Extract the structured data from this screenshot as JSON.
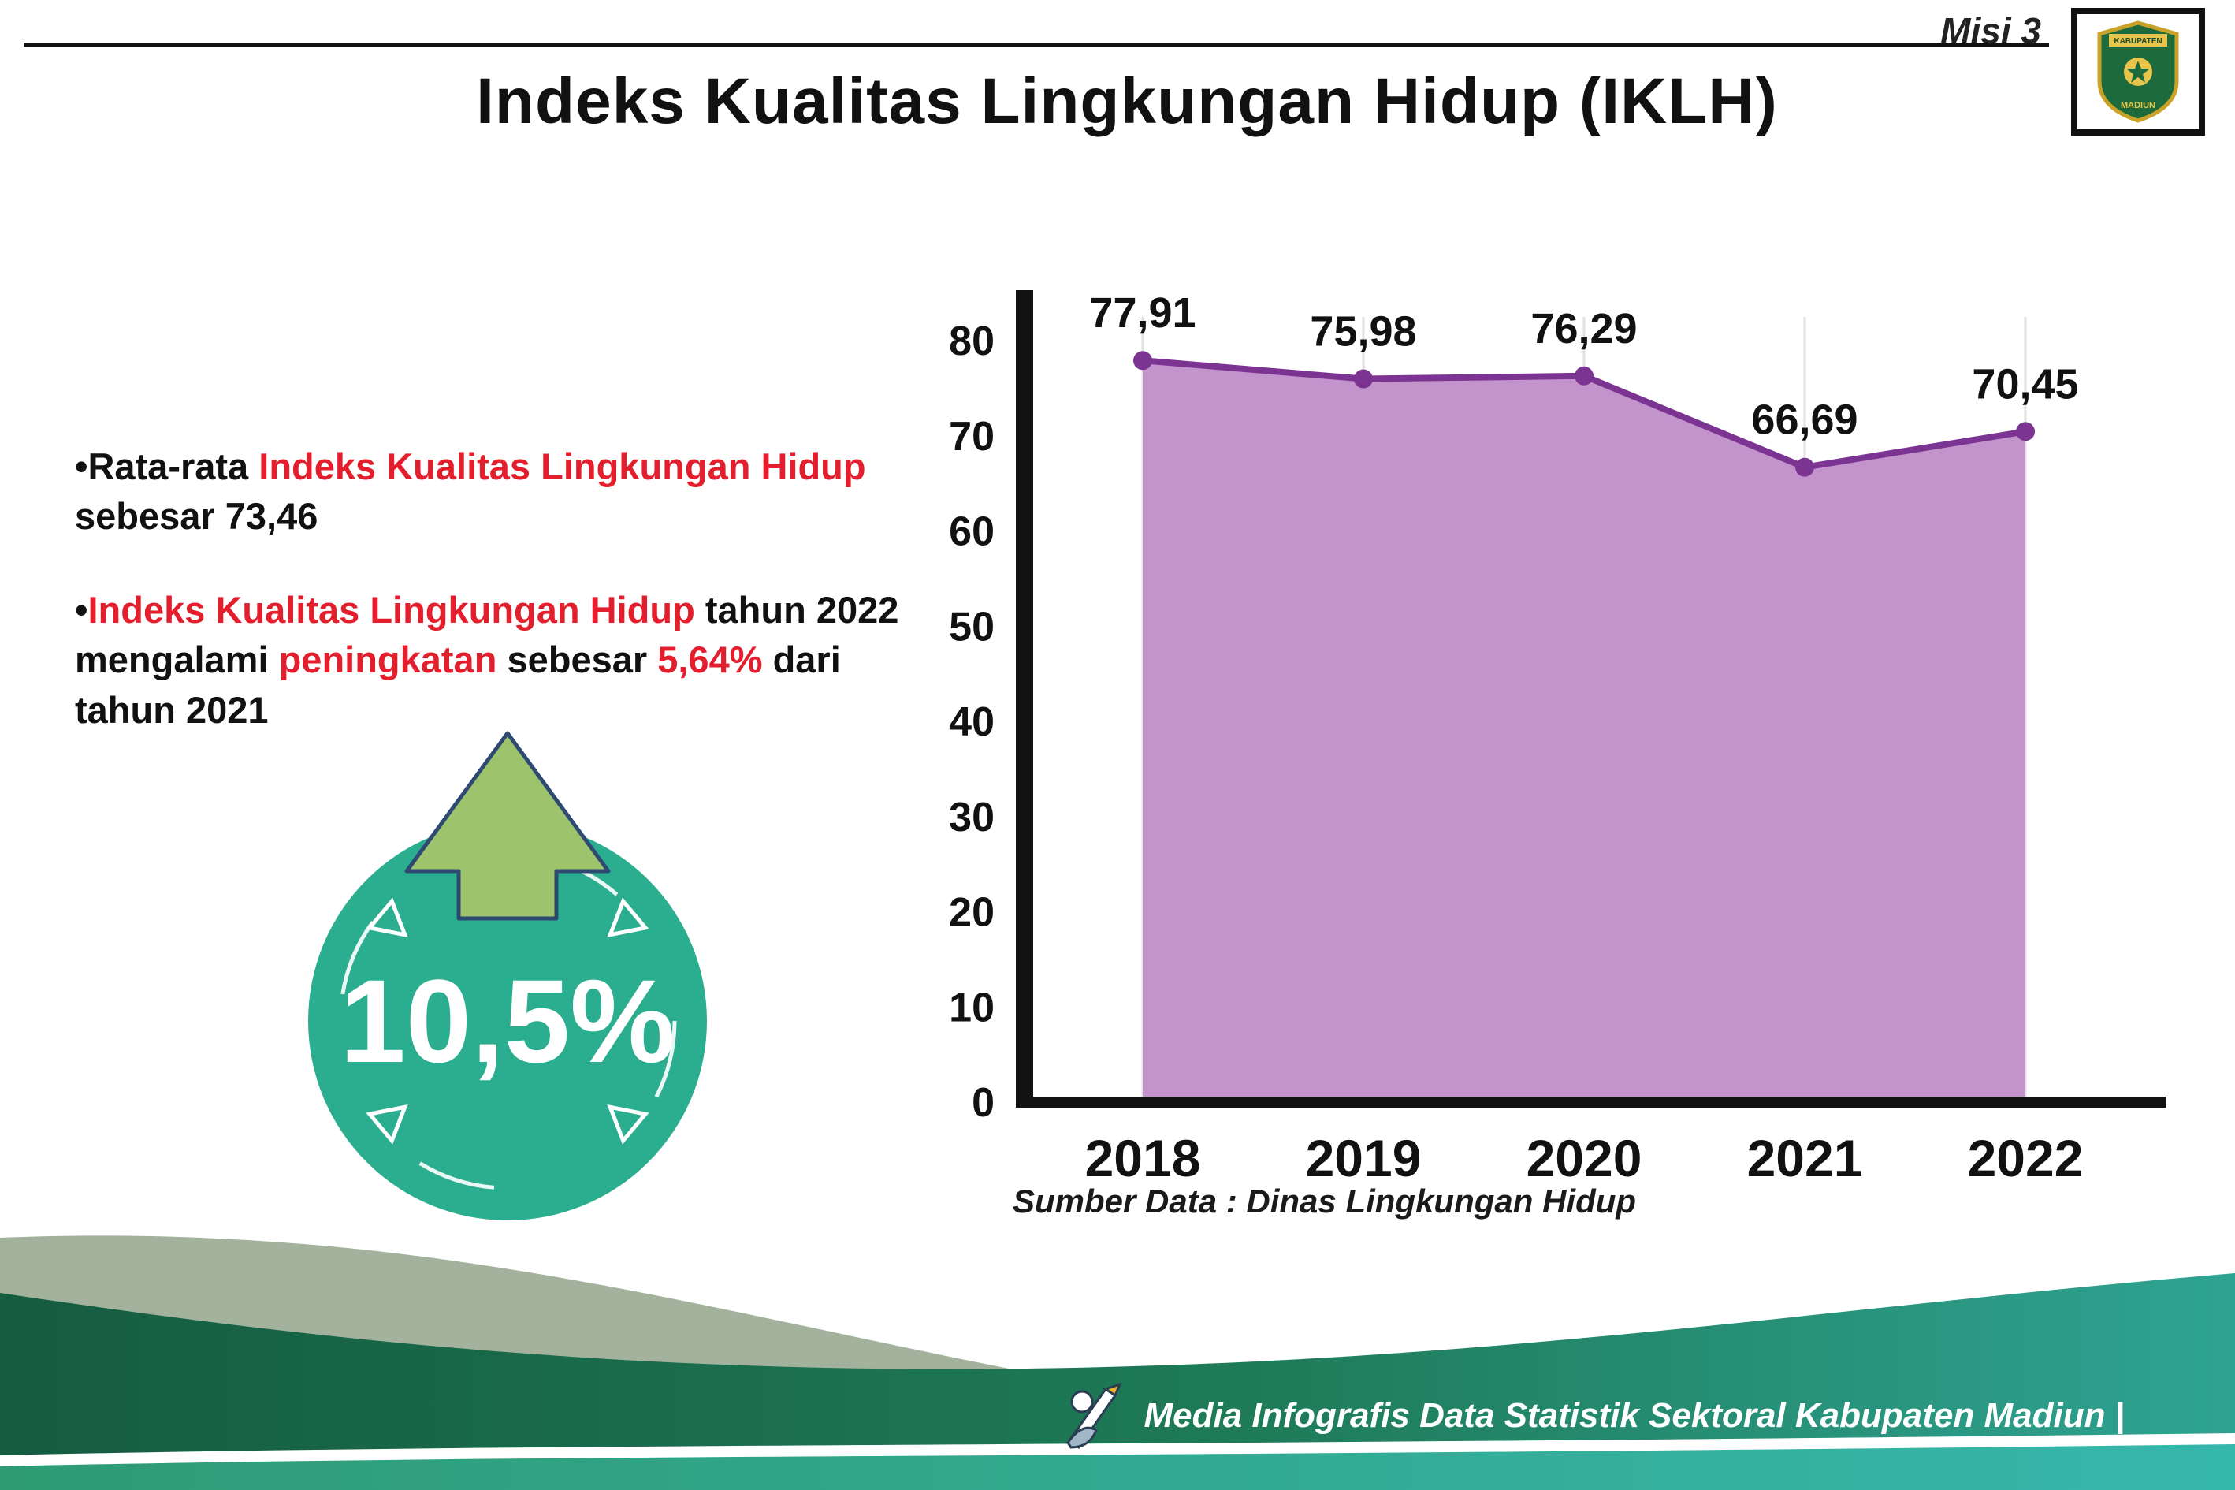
{
  "header": {
    "misi_label": "Misi 3",
    "logo": {
      "name": "kabupaten-madiun-logo",
      "top_text": "KABUPATEN",
      "bottom_text": "MADIUN"
    },
    "title": "Indeks Kualitas Lingkungan Hidup (IKLH)"
  },
  "bullets": [
    {
      "segments": [
        {
          "t": "•Rata-rata ",
          "red": false
        },
        {
          "t": "Indeks Kualitas Lingkungan Hidup",
          "red": true
        },
        {
          "t": " sebesar 73,46",
          "red": false
        }
      ]
    },
    {
      "segments": [
        {
          "t": "•",
          "red": false
        },
        {
          "t": "Indeks Kualitas Lingkungan Hidup",
          "red": true
        },
        {
          "t": " tahun 2022 mengalami ",
          "red": false
        },
        {
          "t": "peningkatan",
          "red": true
        },
        {
          "t": " sebesar ",
          "red": false
        },
        {
          "t": "5,64%",
          "red": true
        },
        {
          "t": " dari tahun 2021",
          "red": false
        }
      ]
    }
  ],
  "badge": {
    "value": "10,5%",
    "circle_color": "#2bae8f",
    "arrow_color": "#9dc36d"
  },
  "chart_data": {
    "type": "area",
    "title": "",
    "categories": [
      "2018",
      "2019",
      "2020",
      "2021",
      "2022"
    ],
    "values": [
      77.91,
      75.98,
      76.29,
      66.69,
      70.45
    ],
    "value_labels": [
      "77,91",
      "75,98",
      "76,29",
      "66,69",
      "70,45"
    ],
    "xlabel": "",
    "ylabel": "",
    "ylim": [
      0,
      80
    ],
    "ytick_step": 10,
    "grid": "faint vertical gridlines at each year",
    "legend": "none",
    "fill_color": "#c393cb",
    "line_color": "#7c3492",
    "source": "Sumber Data : Dinas Lingkungan Hidup"
  },
  "footer": {
    "text": "Media Infografis Data Statistik Sektoral Kabupaten Madiun |",
    "gradient_left": "#155c41",
    "gradient_right": "#2fa393"
  },
  "colors": {
    "accent_red": "#e31e2d",
    "badge_teal": "#2bae8f",
    "arrow_green": "#9dc36d",
    "chart_fill": "#c393cb",
    "chart_line": "#7c3492"
  }
}
